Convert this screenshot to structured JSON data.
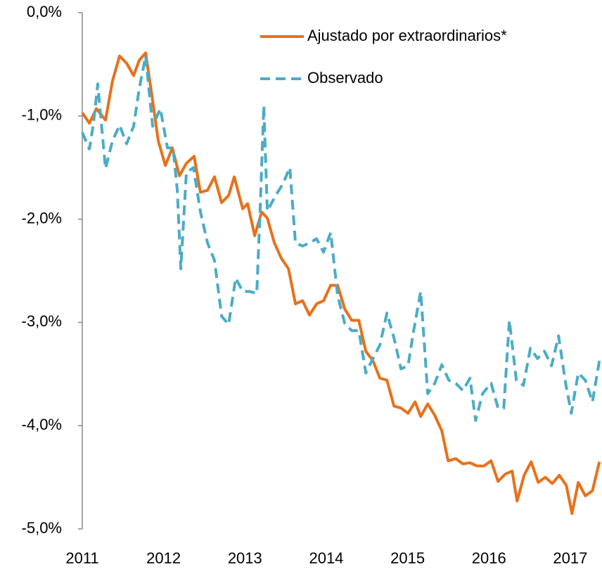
{
  "chart_data": {
    "type": "line",
    "xlim": [
      2011,
      2017.39
    ],
    "xticks": [
      2011,
      2012,
      2013,
      2014,
      2015,
      2016,
      2017
    ],
    "ylim": [
      -5,
      0
    ],
    "yticks": [
      {
        "value": 0,
        "label": "0,0%"
      },
      {
        "value": -1,
        "label": "-1,0%"
      },
      {
        "value": -2,
        "label": "-2,0%"
      },
      {
        "value": -3,
        "label": "-3,0%"
      },
      {
        "value": -4,
        "label": "-4,0%"
      },
      {
        "value": -5,
        "label": "-5,0%"
      }
    ],
    "legend": "upper right",
    "series": [
      {
        "name": "Ajustado por extraordinarios*",
        "color": "#e8711a",
        "style": "solid",
        "x": [
          2011.0,
          2011.087,
          2011.173,
          2011.285,
          2011.372,
          2011.458,
          2011.545,
          2011.631,
          2011.701,
          2011.779,
          2011.848,
          2011.934,
          2012.021,
          2012.107,
          2012.194,
          2012.28,
          2012.375,
          2012.453,
          2012.54,
          2012.626,
          2012.713,
          2012.799,
          2012.869,
          2012.972,
          2013.033,
          2013.119,
          2013.206,
          2013.275,
          2013.362,
          2013.448,
          2013.535,
          2013.621,
          2013.708,
          2013.794,
          2013.881,
          2013.967,
          2014.054,
          2014.14,
          2014.227,
          2014.313,
          2014.4,
          2014.486,
          2014.573,
          2014.659,
          2014.746,
          2014.832,
          2014.919,
          2015.005,
          2015.092,
          2015.161,
          2015.247,
          2015.334,
          2015.42,
          2015.498,
          2015.593,
          2015.68,
          2015.767,
          2015.853,
          2015.939,
          2016.026,
          2016.112,
          2016.199,
          2016.285,
          2016.346,
          2016.433,
          2016.519,
          2016.606,
          2016.692,
          2016.779,
          2016.865,
          2016.952,
          2017.021,
          2017.099,
          2017.185,
          2017.272,
          2017.358
        ],
        "values": [
          -0.97,
          -1.07,
          -0.93,
          -1.04,
          -0.66,
          -0.42,
          -0.49,
          -0.61,
          -0.46,
          -0.39,
          -0.76,
          -1.24,
          -1.48,
          -1.31,
          -1.58,
          -1.46,
          -1.39,
          -1.74,
          -1.72,
          -1.59,
          -1.84,
          -1.77,
          -1.59,
          -1.9,
          -1.85,
          -2.16,
          -1.93,
          -1.99,
          -2.23,
          -2.38,
          -2.48,
          -2.82,
          -2.79,
          -2.93,
          -2.82,
          -2.79,
          -2.64,
          -2.64,
          -2.87,
          -2.98,
          -2.98,
          -3.28,
          -3.37,
          -3.54,
          -3.56,
          -3.81,
          -3.83,
          -3.88,
          -3.77,
          -3.91,
          -3.79,
          -3.9,
          -4.05,
          -4.34,
          -4.32,
          -4.37,
          -4.36,
          -4.39,
          -4.39,
          -4.34,
          -4.54,
          -4.47,
          -4.44,
          -4.73,
          -4.48,
          -4.35,
          -4.55,
          -4.5,
          -4.56,
          -4.48,
          -4.58,
          -4.85,
          -4.55,
          -4.68,
          -4.63,
          -4.35
        ]
      },
      {
        "name": "Observado",
        "color": "#4bacc6",
        "style": "dashed",
        "x": [
          2011.0,
          2011.087,
          2011.138,
          2011.19,
          2011.285,
          2011.372,
          2011.458,
          2011.545,
          2011.631,
          2011.701,
          2011.779,
          2011.865,
          2011.96,
          2012.047,
          2012.116,
          2012.168,
          2012.211,
          2012.28,
          2012.367,
          2012.453,
          2012.54,
          2012.626,
          2012.713,
          2012.799,
          2012.886,
          2012.972,
          2013.059,
          2013.145,
          2013.189,
          2013.232,
          2013.275,
          2013.379,
          2013.465,
          2013.552,
          2013.621,
          2013.708,
          2013.794,
          2013.881,
          2013.967,
          2014.054,
          2014.14,
          2014.227,
          2014.313,
          2014.4,
          2014.486,
          2014.573,
          2014.659,
          2014.746,
          2014.832,
          2014.919,
          2015.005,
          2015.074,
          2015.161,
          2015.247,
          2015.334,
          2015.42,
          2015.507,
          2015.593,
          2015.68,
          2015.767,
          2015.836,
          2015.922,
          2016.026,
          2016.112,
          2016.182,
          2016.251,
          2016.337,
          2016.424,
          2016.51,
          2016.597,
          2016.683,
          2016.77,
          2016.856,
          2016.943,
          2017.012,
          2017.099,
          2017.185,
          2017.272,
          2017.358
        ],
        "values": [
          -1.16,
          -1.32,
          -1.07,
          -0.69,
          -1.51,
          -1.24,
          -1.09,
          -1.27,
          -1.1,
          -0.73,
          -0.42,
          -1.1,
          -0.93,
          -1.31,
          -1.31,
          -1.72,
          -2.48,
          -1.55,
          -1.5,
          -1.93,
          -2.23,
          -2.4,
          -2.94,
          -3.02,
          -2.57,
          -2.7,
          -2.7,
          -2.72,
          -1.85,
          -0.9,
          -1.92,
          -1.77,
          -1.66,
          -1.5,
          -2.23,
          -2.26,
          -2.23,
          -2.19,
          -2.32,
          -2.13,
          -2.74,
          -3.01,
          -3.08,
          -3.08,
          -3.49,
          -3.35,
          -3.22,
          -2.91,
          -3.15,
          -3.45,
          -3.42,
          -3.08,
          -2.7,
          -3.69,
          -3.59,
          -3.41,
          -3.56,
          -3.59,
          -3.66,
          -3.54,
          -3.95,
          -3.69,
          -3.59,
          -3.83,
          -3.83,
          -2.98,
          -3.56,
          -3.61,
          -3.25,
          -3.35,
          -3.28,
          -3.42,
          -3.13,
          -3.59,
          -3.88,
          -3.49,
          -3.56,
          -3.77,
          -3.37
        ]
      }
    ]
  }
}
